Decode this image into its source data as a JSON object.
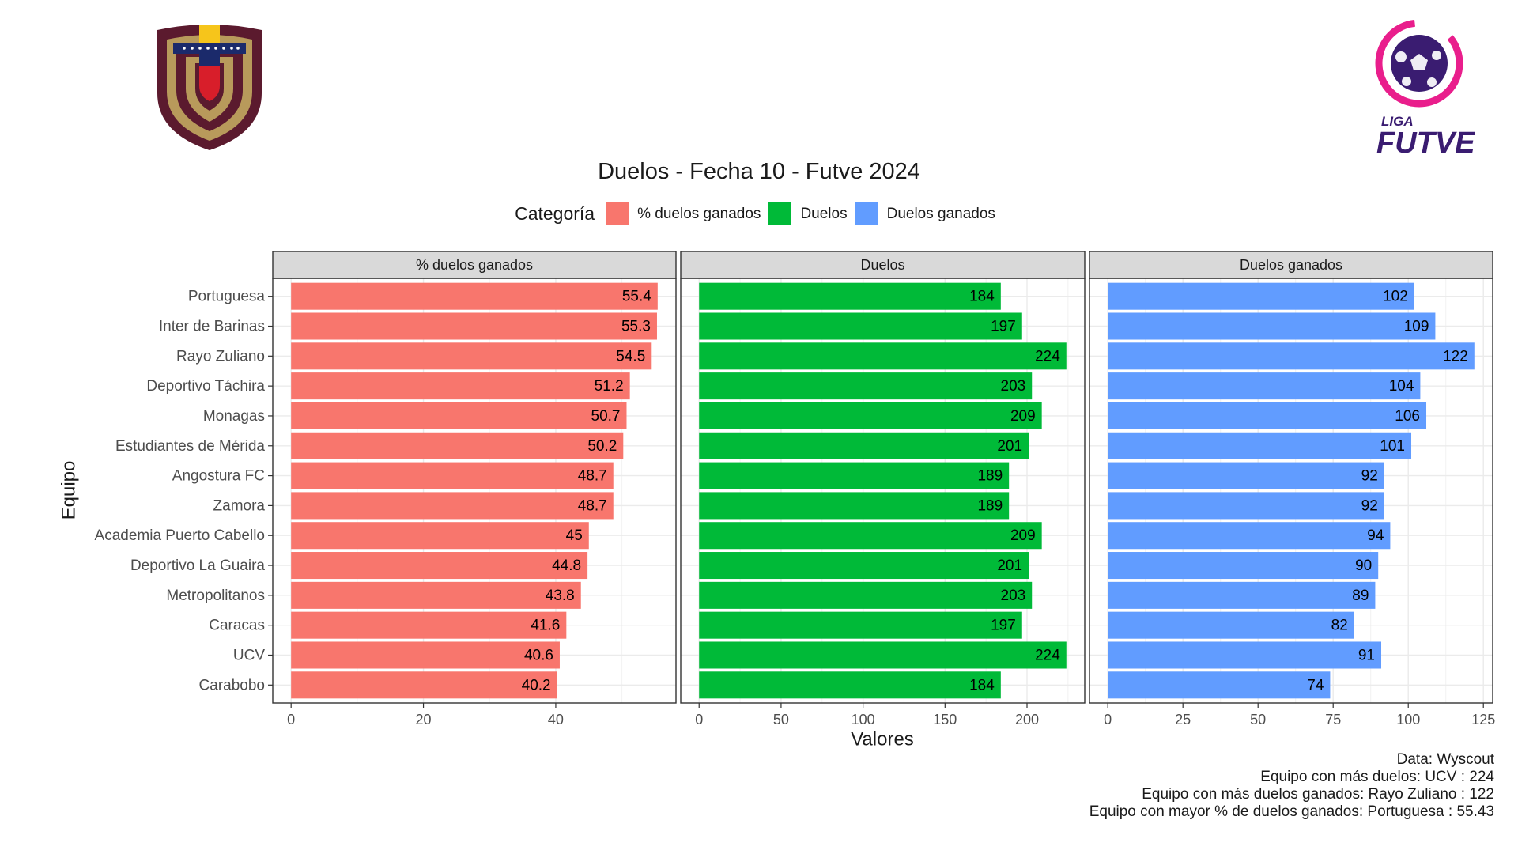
{
  "chart_data": {
    "type": "bar",
    "orientation": "horizontal",
    "title": "Duelos - Fecha 10 - Futve 2024",
    "xlabel": "Valores",
    "ylabel": "Equipo",
    "legend": {
      "title": "Categoría",
      "position": "top",
      "entries": [
        "% duelos ganados",
        "Duelos",
        "Duelos ganados"
      ]
    },
    "grid": true,
    "categories": [
      "Portuguesa",
      "Inter de Barinas",
      "Rayo Zuliano",
      "Deportivo Táchira",
      "Monagas",
      "Estudiantes de Mérida",
      "Angostura FC",
      "Zamora",
      "Academia Puerto Cabello",
      "Deportivo La Guaira",
      "Metropolitanos",
      "Caracas",
      "UCV",
      "Carabobo"
    ],
    "panels": [
      {
        "name": "% duelos ganados",
        "color": "#F8766D",
        "values": [
          55.4,
          55.3,
          54.5,
          51.2,
          50.7,
          50.2,
          48.7,
          48.7,
          45,
          44.8,
          43.8,
          41.6,
          40.6,
          40.2
        ],
        "xticks": [
          0,
          20,
          40
        ],
        "xlim": [
          -2.77,
          58.17
        ]
      },
      {
        "name": "Duelos",
        "color": "#00BA38",
        "values": [
          184,
          197,
          224,
          203,
          209,
          201,
          189,
          189,
          209,
          201,
          203,
          197,
          224,
          184
        ],
        "xticks": [
          0,
          50,
          100,
          150,
          200
        ],
        "xlim": [
          -11.2,
          235.2
        ]
      },
      {
        "name": "Duelos ganados",
        "color": "#619CFF",
        "values": [
          102,
          109,
          122,
          104,
          106,
          101,
          92,
          92,
          94,
          90,
          89,
          82,
          91,
          74
        ],
        "xticks": [
          0,
          25,
          50,
          75,
          100,
          125
        ],
        "xlim": [
          -6.1,
          128.1
        ]
      }
    ]
  },
  "caption": [
    "Data: Wyscout",
    "Equipo con más duelos: UCV : 224",
    "Equipo con más duelos ganados: Rayo Zuliano : 122",
    "Equipo con mayor % de duelos ganados: Portuguesa : 55.43"
  ],
  "logos": {
    "left_crest": "venezuela-federation-crest",
    "right_logo": {
      "line1": "LIGA",
      "line2": "FUTVE"
    }
  },
  "colors": {
    "strip_fill": "#D9D9D9",
    "panel_border": "#333333",
    "grid": "#EBEBEB",
    "crest_maroon": "#5B1A2E",
    "crest_gold": "#B89A5B",
    "futve_purple": "#3A1C71",
    "futve_pink": "#E91E8C"
  }
}
